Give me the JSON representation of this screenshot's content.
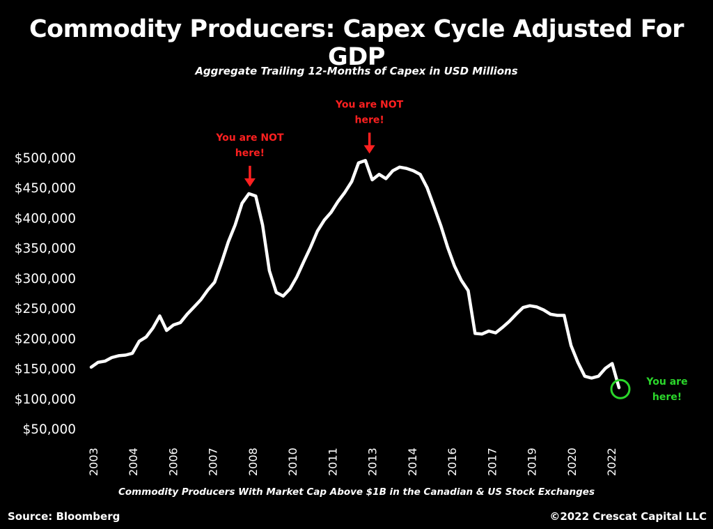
{
  "header": {
    "title": "Commodity Producers: Capex Cycle Adjusted For GDP",
    "subtitle": "Aggregate Trailing 12-Months of Capex in USD Millions"
  },
  "footer": {
    "x_caption": "Commodity Producers With Market Cap Above $1B in the Canadian & US Stock Exchanges",
    "source": "Source: Bloomberg",
    "copyright": "©2022 Crescat Capital LLC"
  },
  "colors": {
    "line": "#ffffff",
    "annotation_red": "#ff2020",
    "annotation_green": "#2bd62b",
    "background": "#000000"
  },
  "chart_data": {
    "type": "line",
    "title": "Commodity Producers: Capex Cycle Adjusted For GDP",
    "subtitle": "Aggregate Trailing 12-Months of Capex in USD Millions",
    "xlabel": "Commodity Producers With Market Cap Above $1B in the Canadian & US Stock Exchanges",
    "ylabel": "",
    "ylim": [
      50000,
      500000
    ],
    "grid": false,
    "y_ticks": [
      500000,
      450000,
      400000,
      350000,
      300000,
      250000,
      200000,
      150000,
      100000,
      50000
    ],
    "y_tick_labels": [
      "$500,000",
      "$450,000",
      "$400,000",
      "$350,000",
      "$300,000",
      "$250,000",
      "$200,000",
      "$150,000",
      "$100,000",
      "$50,000"
    ],
    "x_tick_labels": [
      "2003",
      "2004",
      "2006",
      "2007",
      "2008",
      "2010",
      "2011",
      "2013",
      "2014",
      "2016",
      "2017",
      "2019",
      "2020",
      "2022"
    ],
    "series": [
      {
        "values": [
          152000,
          160000,
          162000,
          168000,
          171000,
          172000,
          175000,
          195000,
          202000,
          217000,
          237000,
          213000,
          222000,
          226000,
          240000,
          252000,
          264000,
          280000,
          293000,
          325000,
          360000,
          388000,
          424000,
          440000,
          436000,
          388000,
          312000,
          276000,
          270000,
          282000,
          302000,
          327000,
          351000,
          378000,
          396000,
          409000,
          427000,
          442000,
          460000,
          491000,
          495000,
          463000,
          472000,
          465000,
          478000,
          484000,
          482000,
          478000,
          472000,
          450000,
          419000,
          387000,
          351000,
          320000,
          296000,
          279000,
          208000,
          207000,
          212000,
          209000,
          218000,
          228000,
          240000,
          251000,
          254000,
          252000,
          247000,
          240000,
          238000,
          238000,
          188000,
          160000,
          137000,
          134000,
          137000,
          150000,
          158000,
          118000
        ]
      }
    ],
    "annotations": [
      {
        "lines": [
          "You are NOT",
          "here!"
        ],
        "x_tick": "2008",
        "color": "red"
      },
      {
        "lines": [
          "You are NOT",
          "here!"
        ],
        "x_tick": "2013",
        "color": "red"
      },
      {
        "lines": [
          "You are",
          "here!"
        ],
        "point": "last",
        "color": "green"
      }
    ]
  }
}
